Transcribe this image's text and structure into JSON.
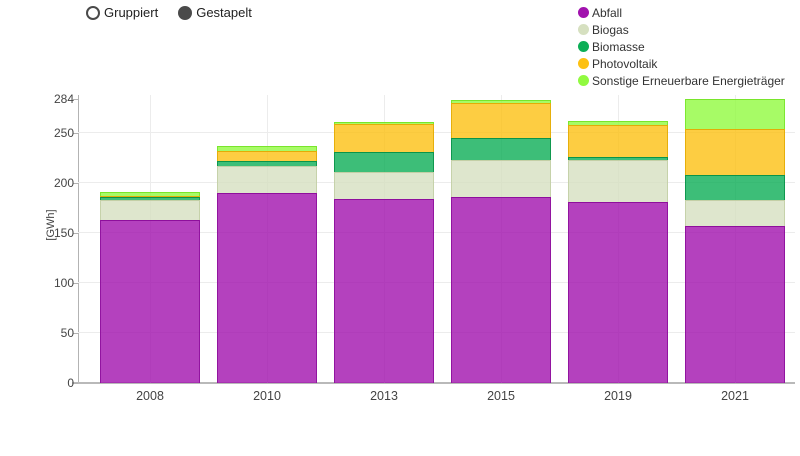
{
  "controls": {
    "options": [
      {
        "label": "Gruppiert",
        "selected": false
      },
      {
        "label": "Gestapelt",
        "selected": true
      }
    ]
  },
  "chart_data": {
    "type": "bar",
    "stacked": true,
    "categories": [
      "2008",
      "2010",
      "2013",
      "2015",
      "2019",
      "2021"
    ],
    "series": [
      {
        "name": "Abfall",
        "color": "#A112AE",
        "border": "#8E0F9C",
        "values": [
          163,
          190,
          184,
          186,
          181,
          157
        ]
      },
      {
        "name": "Biogas",
        "color": "#D6E0C0",
        "border": "#C3CFA6",
        "values": [
          20,
          27,
          27,
          37,
          42,
          26
        ]
      },
      {
        "name": "Biomasse",
        "color": "#0CAE56",
        "border": "#0A9449",
        "values": [
          3,
          5,
          20,
          22,
          3,
          25
        ]
      },
      {
        "name": "Photovoltaik",
        "color": "#FDC113",
        "border": "#E3AC05",
        "values": [
          1,
          10,
          28,
          35,
          32,
          46
        ]
      },
      {
        "name": "Sonstige Erneuerbare Energieträger",
        "color": "#91FA40",
        "border": "#79E52B",
        "values": [
          4,
          5,
          2,
          3,
          4,
          30
        ]
      }
    ],
    "title": "",
    "xlabel": "",
    "ylabel": "[GWh]",
    "yticks": [
      0,
      50,
      100,
      150,
      200,
      250,
      284
    ],
    "ylim": [
      0,
      284
    ],
    "grid": true,
    "legend_position": "top-right",
    "bar_fill_opacity": 0.8
  }
}
